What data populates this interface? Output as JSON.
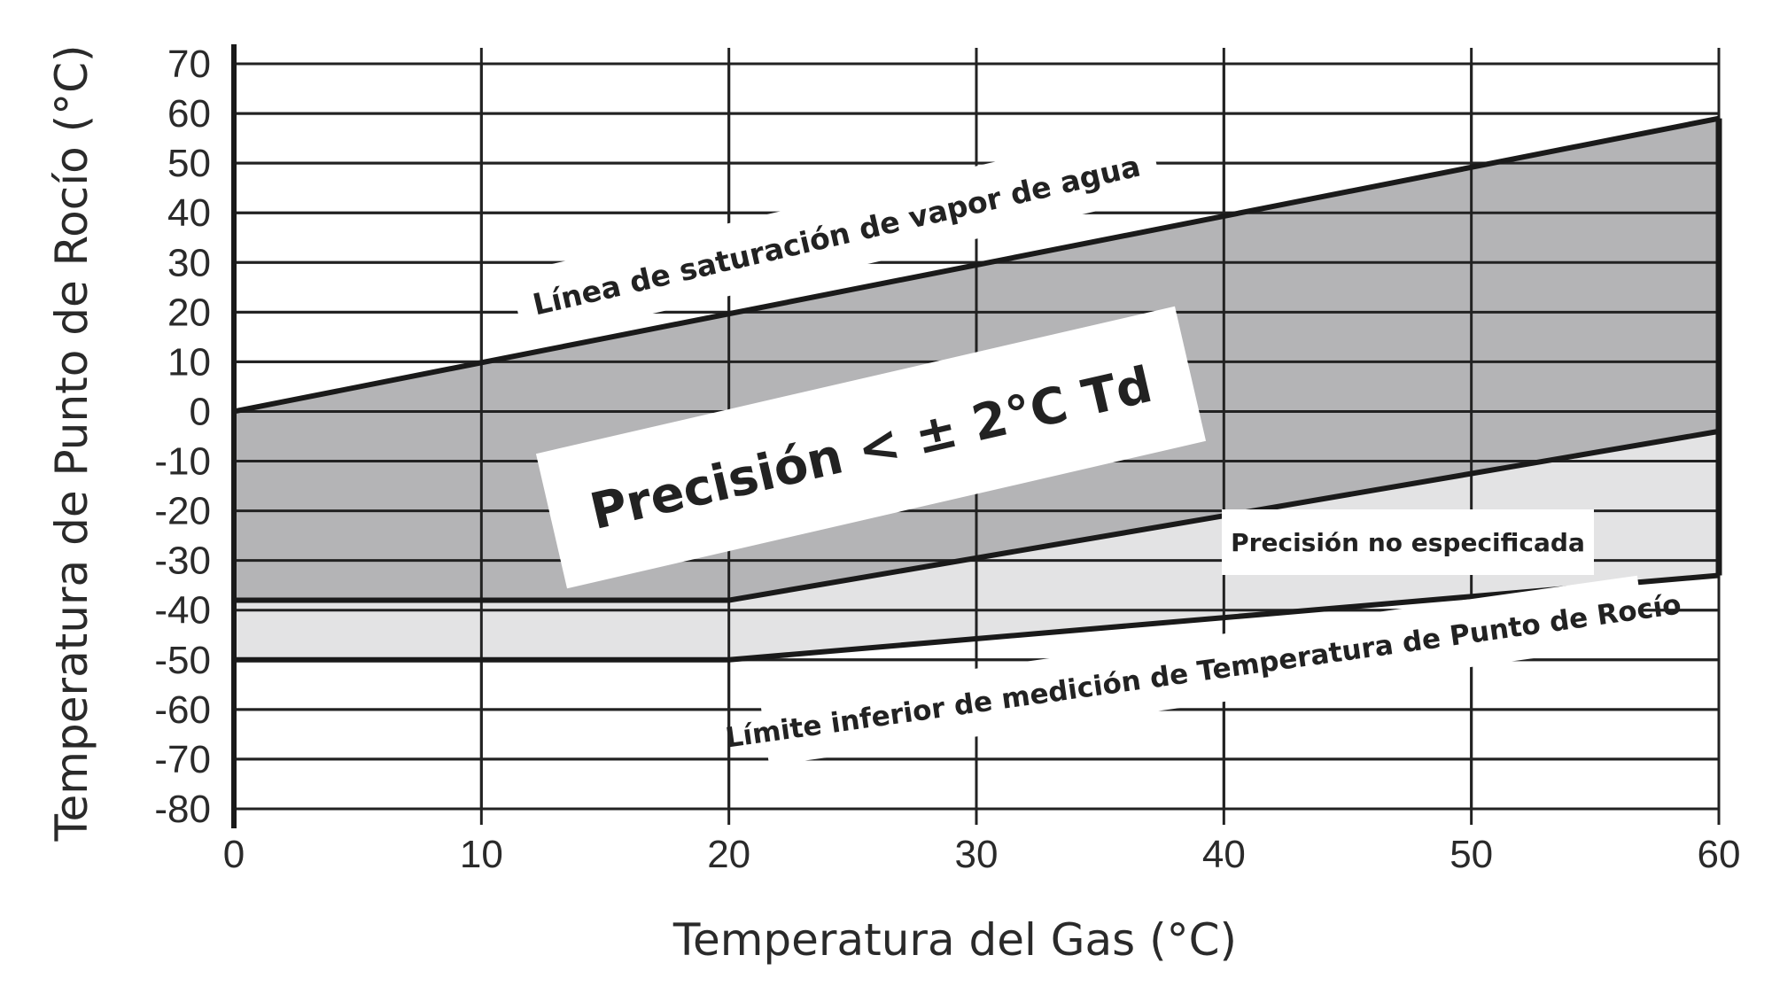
{
  "chart_data": {
    "type": "area",
    "title": "",
    "xlabel": "Temperatura del Gas (°C)",
    "ylabel": "Temperatura de Punto de Rocío (°C)",
    "xlim": [
      0,
      60
    ],
    "ylim": [
      -80,
      70
    ],
    "x_ticks": [
      0,
      10,
      20,
      30,
      40,
      50,
      60
    ],
    "y_ticks": [
      70,
      60,
      50,
      40,
      30,
      20,
      10,
      0,
      -10,
      -20,
      -30,
      -40,
      -50,
      -60,
      -70,
      -80
    ],
    "grid": true,
    "series": [
      {
        "name": "Línea de saturación de vapor de agua",
        "x": [
          0,
          60
        ],
        "y": [
          0,
          59
        ]
      },
      {
        "name": "",
        "x": [
          0,
          20,
          60
        ],
        "y": [
          -38,
          -38,
          -4
        ]
      },
      {
        "name": "Límite inferior de medición de Temperatura de Punto de Rocío",
        "x": [
          0,
          20,
          60
        ],
        "y": [
          -50,
          -50,
          -33
        ]
      }
    ],
    "regions": [
      {
        "name": "Precisión < ± 2°C Td",
        "between": [
          0,
          1
        ],
        "color": "#b4b4b6"
      },
      {
        "name": "Precisión no especificada",
        "between": [
          1,
          2
        ],
        "color": "#e3e3e4"
      }
    ],
    "annotations": [
      "Línea de saturación de vapor de agua",
      "Precisión < ± 2°C Td",
      "Precisión no especificada",
      "Límite inferior de medición de Temperatura de Punto de Rocío"
    ],
    "colors": {
      "grid": "#222222",
      "line": "#1a1a1a",
      "upper_region": "#b4b4b6",
      "lower_region": "#e3e3e4"
    }
  }
}
